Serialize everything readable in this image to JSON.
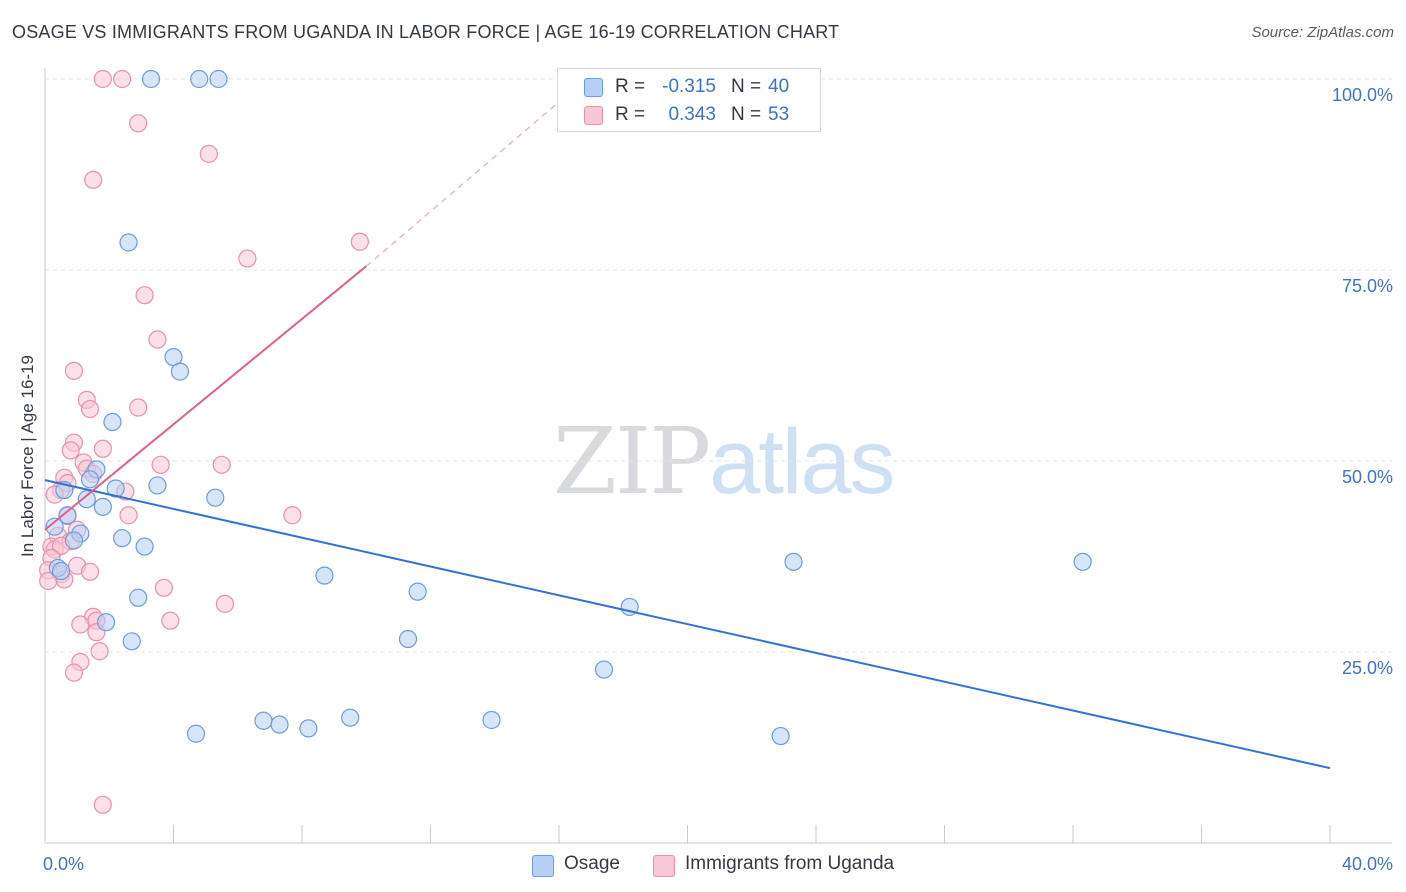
{
  "title": "OSAGE VS IMMIGRANTS FROM UGANDA IN LABOR FORCE | AGE 16-19 CORRELATION CHART",
  "source": "Source: ZipAtlas.com",
  "watermark": {
    "zip": "ZIP",
    "atlas": "atlas"
  },
  "colors": {
    "osage_fill": "#b7d0f3",
    "osage_stroke": "#6b9de0",
    "osage_line": "#3173d1",
    "uganda_fill": "#f8c7d6",
    "uganda_stroke": "#ec8fb0",
    "uganda_line": "#e0608f",
    "grid": "#e3e5e8",
    "tick_label": "#3d74c9"
  },
  "legend_top": [
    {
      "r_label": "R = ",
      "r_value": "-0.315",
      "n_label": "N = ",
      "n_value": "40"
    },
    {
      "r_label": "R = ",
      "r_value": "0.343",
      "n_label": "N = ",
      "n_value": "53"
    }
  ],
  "legend_bottom": [
    "Osage",
    "Immigrants from Uganda"
  ],
  "chart_data": {
    "type": "scatter",
    "title": "OSAGE VS IMMIGRANTS FROM UGANDA IN LABOR FORCE | AGE 16-19 CORRELATION CHART",
    "xlabel": "",
    "ylabel": "In Labor Force | Age 16-19",
    "xlim": [
      0,
      40
    ],
    "ylim": [
      0,
      100
    ],
    "x_ticks": [
      "0.0%",
      "40.0%"
    ],
    "y_ticks": [
      "25.0%",
      "50.0%",
      "75.0%",
      "100.0%"
    ],
    "y_tick_values": [
      25,
      50,
      75,
      100
    ],
    "grid": "horizontal dashed",
    "legend": "bottom",
    "series": [
      {
        "name": "Osage",
        "r": -0.315,
        "n": 40,
        "trend": {
          "x": [
            0,
            40
          ],
          "y": [
            47.5,
            9.8
          ]
        },
        "points": [
          [
            3.3,
            100
          ],
          [
            4.8,
            100
          ],
          [
            5.4,
            100
          ],
          [
            2.6,
            78.6
          ],
          [
            4.0,
            63.6
          ],
          [
            4.2,
            61.7
          ],
          [
            2.1,
            55.1
          ],
          [
            1.6,
            48.9
          ],
          [
            1.4,
            47.6
          ],
          [
            2.2,
            46.4
          ],
          [
            3.5,
            46.8
          ],
          [
            1.3,
            45.0
          ],
          [
            5.3,
            45.2
          ],
          [
            1.8,
            44.0
          ],
          [
            0.6,
            46.2
          ],
          [
            0.7,
            42.9
          ],
          [
            0.3,
            41.4
          ],
          [
            1.1,
            40.5
          ],
          [
            2.4,
            39.9
          ],
          [
            0.9,
            39.6
          ],
          [
            3.1,
            38.8
          ],
          [
            0.4,
            36.0
          ],
          [
            0.5,
            35.6
          ],
          [
            8.7,
            35.0
          ],
          [
            23.3,
            36.8
          ],
          [
            32.3,
            36.8
          ],
          [
            11.6,
            32.9
          ],
          [
            2.9,
            32.1
          ],
          [
            18.2,
            30.9
          ],
          [
            1.9,
            28.9
          ],
          [
            2.7,
            26.4
          ],
          [
            11.3,
            26.7
          ],
          [
            17.4,
            22.7
          ],
          [
            4.7,
            14.3
          ],
          [
            6.8,
            16.0
          ],
          [
            7.3,
            15.5
          ],
          [
            8.2,
            15.0
          ],
          [
            9.5,
            16.4
          ],
          [
            13.9,
            16.1
          ],
          [
            22.9,
            14.0
          ]
        ]
      },
      {
        "name": "Immigrants from Uganda",
        "r": 0.343,
        "n": 53,
        "trend": {
          "x": [
            0,
            10
          ],
          "y": [
            41.0,
            75.5
          ],
          "dashed_extension_to": [
            16.0,
            97.0
          ]
        },
        "points": [
          [
            1.8,
            100
          ],
          [
            2.4,
            100
          ],
          [
            2.9,
            94.2
          ],
          [
            5.1,
            90.2
          ],
          [
            1.5,
            86.8
          ],
          [
            9.8,
            78.7
          ],
          [
            6.3,
            76.5
          ],
          [
            3.1,
            71.7
          ],
          [
            3.5,
            65.9
          ],
          [
            0.9,
            61.8
          ],
          [
            1.3,
            58.0
          ],
          [
            1.4,
            56.8
          ],
          [
            2.9,
            57.0
          ],
          [
            0.9,
            52.4
          ],
          [
            0.8,
            51.4
          ],
          [
            1.8,
            51.6
          ],
          [
            1.2,
            49.8
          ],
          [
            1.3,
            49.0
          ],
          [
            1.5,
            48.3
          ],
          [
            3.6,
            49.5
          ],
          [
            5.5,
            49.5
          ],
          [
            0.6,
            47.8
          ],
          [
            0.7,
            47.1
          ],
          [
            0.5,
            46.2
          ],
          [
            2.5,
            46.0
          ],
          [
            0.3,
            45.6
          ],
          [
            0.7,
            42.8
          ],
          [
            2.6,
            42.9
          ],
          [
            7.7,
            42.9
          ],
          [
            1.0,
            41.0
          ],
          [
            0.4,
            40.2
          ],
          [
            0.8,
            39.5
          ],
          [
            0.2,
            38.8
          ],
          [
            0.3,
            38.4
          ],
          [
            0.5,
            38.9
          ],
          [
            0.2,
            37.3
          ],
          [
            0.1,
            35.7
          ],
          [
            1.0,
            36.3
          ],
          [
            1.4,
            35.5
          ],
          [
            0.5,
            35.2
          ],
          [
            0.6,
            34.5
          ],
          [
            0.1,
            34.3
          ],
          [
            3.7,
            33.4
          ],
          [
            5.6,
            31.3
          ],
          [
            1.5,
            29.6
          ],
          [
            1.6,
            29.1
          ],
          [
            1.1,
            28.6
          ],
          [
            3.9,
            29.1
          ],
          [
            1.6,
            27.6
          ],
          [
            1.7,
            25.1
          ],
          [
            1.1,
            23.7
          ],
          [
            0.9,
            22.3
          ],
          [
            1.8,
            5.0
          ]
        ]
      }
    ]
  }
}
